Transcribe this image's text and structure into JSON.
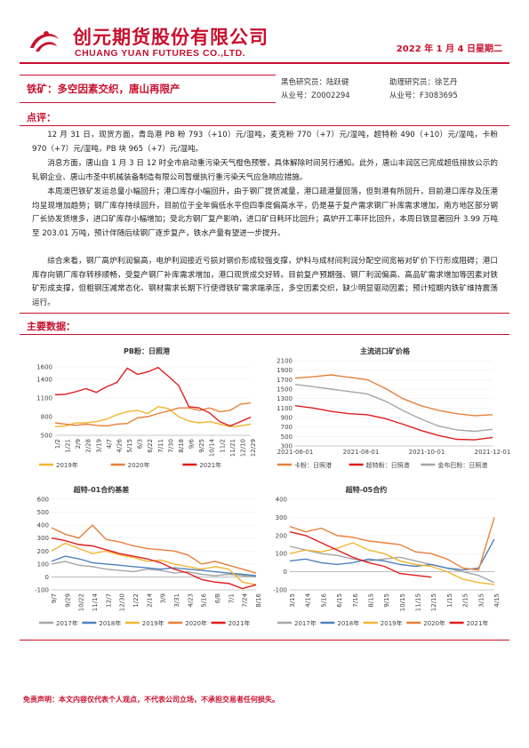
{
  "header": {
    "company_cn": "创元期货股份有限公司",
    "company_en": "CHUANG YUAN FUTURES CO.,LTD.",
    "date": "2022 年 1 月 4 日星期二"
  },
  "report": {
    "title": "铁矿：多空因素交织，唐山再限产",
    "analyst_label": "黑色研究员：陆跃健",
    "analyst_id": "从业号：Z0002294",
    "assistant_label": "助理研究员：徐艺丹",
    "assistant_id": "从业号：F3083695"
  },
  "commentary": {
    "heading": "点评：",
    "paragraphs": [
      "12 月 31 日，现货方面，青岛港 PB 粉 793（+10）元/湿吨，麦克粉 770（+7）元/湿吨，超特粉 490（+10）元/湿吨，卡粉 970（+7）元/湿吨，PB 块 965（+7）元/湿吨。",
      "消息方面，唐山自 1 月 3 日 12 时全市启动重污染天气橙色预警，具体解除时间另行通知。此外，唐山丰润区已完成超低排放公示的轧钢企业、唐山市圣中机械装备制造有限公司暂缓执行重污染天气应急响应措施。",
      "本周澳巴铁矿发运总量小幅回升；港口库存小幅回升，由于钢厂提货减量，港口疏港量回落，但到港有所回升，目前港口库存及压港均呈现增加趋势；钢厂库存持续回升，目前位于全年偏低水平但四季度偏高水平，仍是基于复产需求钢厂补库需求增加，南方地区部分钢厂长协发货增多，进口矿库存小幅增加；受北方钢厂复产影响，进口矿日耗环比回升；高炉开工率环比回升，本周日铁显著回升 3.99 万吨至 203.01 万吨，预计伴随后续钢厂逐步复产，铁水产量有望进一步提升。",
      "综合来看，钢厂高炉利润偏高，电炉利润接近亏损对钢价形成较强支撑，炉料与成材间利润分配空间宽裕对矿价下行形成阻碍；港口库存向钢厂库存转移顺畅，受复产钢厂补库需求增加，港口现货成交好转。目前复产预期强、钢厂利润偏高、高品矿需求增加等因素对铁矿形成支撑，但粗钢压减常态化、钢材需求长期下行使得铁矿需求端承压，多空因素交织，缺少明显驱动因素；预计短期内铁矿维持震荡运行。"
    ]
  },
  "data_section": {
    "heading": "主要数据："
  },
  "chart_data": [
    {
      "type": "line",
      "title": "PB粉：日照港",
      "yticks": [
        "500",
        "600",
        "700",
        "800",
        "900",
        "1000",
        "1100",
        "1200",
        "1300",
        "1400",
        "1500",
        "1600",
        "1700"
      ],
      "shown_yticks": [
        "1600",
        "1400",
        "1100",
        "800",
        "500"
      ],
      "xticks": [
        "1/2",
        "1/21",
        "2/9",
        "2/28",
        "3/19",
        "4/7",
        "4/26",
        "5/15",
        "6/3",
        "6/22",
        "7/11",
        "7/30",
        "8/18",
        "9/6",
        "9/25",
        "10/14",
        "11/2",
        "11/21",
        "12/10",
        "12/29"
      ],
      "ylim": [
        500,
        1700
      ],
      "series": [
        {
          "name": "2019年",
          "color": "#f2b531",
          "values": [
            640,
            650,
            700,
            700,
            720,
            760,
            830,
            880,
            900,
            850,
            960,
            930,
            800,
            730,
            700,
            720,
            680,
            640,
            650,
            680
          ]
        },
        {
          "name": "2020年",
          "color": "#e8803a",
          "values": [
            700,
            680,
            660,
            680,
            660,
            650,
            680,
            690,
            780,
            800,
            850,
            890,
            940,
            940,
            900,
            940,
            880,
            900,
            1000,
            1020
          ]
        },
        {
          "name": "2021年",
          "color": "#e01d1d",
          "values": [
            1150,
            1160,
            1200,
            1250,
            1190,
            1280,
            1350,
            1580,
            1480,
            1520,
            1590,
            1450,
            1300,
            960,
            940,
            860,
            720,
            650,
            720,
            790
          ]
        }
      ],
      "legend_position": "bottom"
    },
    {
      "type": "line",
      "title": "主流进口矿价格",
      "yticks": [
        "300",
        "500",
        "700",
        "900",
        "1100",
        "1300",
        "1500",
        "1700",
        "1900",
        "2100"
      ],
      "xticks": [
        "2021-06-01",
        "2021-08-01",
        "2021-10-01",
        "2021-12-01"
      ],
      "ylim": [
        300,
        2100
      ],
      "series": [
        {
          "name": "卡粉：日照港",
          "color": "#e8803a",
          "values": [
            1730,
            1760,
            1800,
            1750,
            1700,
            1520,
            1300,
            1150,
            1050,
            980,
            940,
            960
          ]
        },
        {
          "name": "超特粉：日照港",
          "color": "#e01d1d",
          "values": [
            1150,
            1100,
            1030,
            980,
            960,
            880,
            760,
            630,
            520,
            440,
            430,
            480
          ]
        },
        {
          "name": "金布巴粉：日照港",
          "color": "#a6a6a6",
          "values": [
            1600,
            1550,
            1500,
            1450,
            1400,
            1250,
            1050,
            870,
            720,
            640,
            610,
            650
          ]
        }
      ],
      "legend_position": "bottom"
    },
    {
      "type": "line",
      "title": "超特-01合约基差",
      "yticks": [
        "-100",
        "0",
        "100",
        "200",
        "300",
        "400",
        "500",
        "600"
      ],
      "xticks": [
        "9/7",
        "9/29",
        "10/22",
        "11/14",
        "12/7",
        "12/30",
        "1/22",
        "2/14",
        "3/9",
        "3/31",
        "4/23",
        "5/16",
        "6/8",
        "7/1",
        "7/24",
        "8/16"
      ],
      "ylim": [
        -100,
        600
      ],
      "series": [
        {
          "name": "2017年",
          "color": "#a6a6a6",
          "values": [
            100,
            120,
            90,
            80,
            60,
            50,
            40,
            60,
            50,
            30,
            40,
            20,
            10,
            20,
            10,
            0
          ]
        },
        {
          "name": "2018年",
          "color": "#4f81bd",
          "values": [
            120,
            160,
            140,
            110,
            100,
            90,
            80,
            70,
            60,
            70,
            60,
            50,
            40,
            30,
            20,
            10
          ]
        },
        {
          "name": "2019年",
          "color": "#f2b531",
          "values": [
            200,
            260,
            220,
            180,
            200,
            170,
            150,
            120,
            130,
            100,
            80,
            60,
            80,
            60,
            -40,
            -60
          ]
        },
        {
          "name": "2020年",
          "color": "#e8803a",
          "values": [
            380,
            330,
            300,
            400,
            290,
            270,
            240,
            220,
            210,
            200,
            170,
            100,
            120,
            90,
            60,
            30
          ]
        },
        {
          "name": "2021年",
          "color": "#e01d1d",
          "values": [
            300,
            280,
            250,
            240,
            210,
            180,
            160,
            140,
            110,
            60,
            30,
            -20,
            -40,
            -50,
            -90,
            -60
          ]
        }
      ],
      "legend_position": "bottom"
    },
    {
      "type": "line",
      "title": "超特-05合约",
      "yticks": [
        "-100",
        "0",
        "100",
        "200",
        "300",
        "400"
      ],
      "xticks": [
        "3/15",
        "4/14",
        "5/16",
        "6/15",
        "7/16",
        "8/15",
        "9/15",
        "10/15",
        "11/15",
        "12/15",
        "1/15",
        "2/15",
        "3/15",
        "4/15"
      ],
      "ylim": [
        -100,
        400
      ],
      "series": [
        {
          "name": "2017年",
          "color": "#a6a6a6",
          "values": [
            140,
            120,
            100,
            90,
            70,
            60,
            70,
            80,
            60,
            40,
            20,
            0,
            -20,
            -60
          ]
        },
        {
          "name": "2018年",
          "color": "#4f81bd",
          "values": [
            60,
            70,
            50,
            40,
            50,
            70,
            60,
            40,
            30,
            40,
            20,
            10,
            20,
            180
          ]
        },
        {
          "name": "2019年",
          "color": "#f2b531",
          "values": [
            100,
            120,
            110,
            130,
            160,
            120,
            100,
            60,
            40,
            30,
            0,
            -40,
            -60,
            -70
          ]
        },
        {
          "name": "2020年",
          "color": "#e8803a",
          "values": [
            250,
            220,
            240,
            200,
            190,
            170,
            160,
            150,
            110,
            100,
            70,
            20,
            10,
            300
          ]
        },
        {
          "name": "2021年",
          "color": "#e01d1d",
          "values": [
            220,
            200,
            160,
            120,
            80,
            50,
            30,
            -10,
            -20,
            -30,
            null,
            null,
            null,
            null
          ]
        }
      ],
      "legend_position": "bottom"
    }
  ],
  "footer": {
    "disclaimer": "免责声明：本文内容仅代表个人观点，不代表公司立场，不承担交易者任何损失。"
  }
}
